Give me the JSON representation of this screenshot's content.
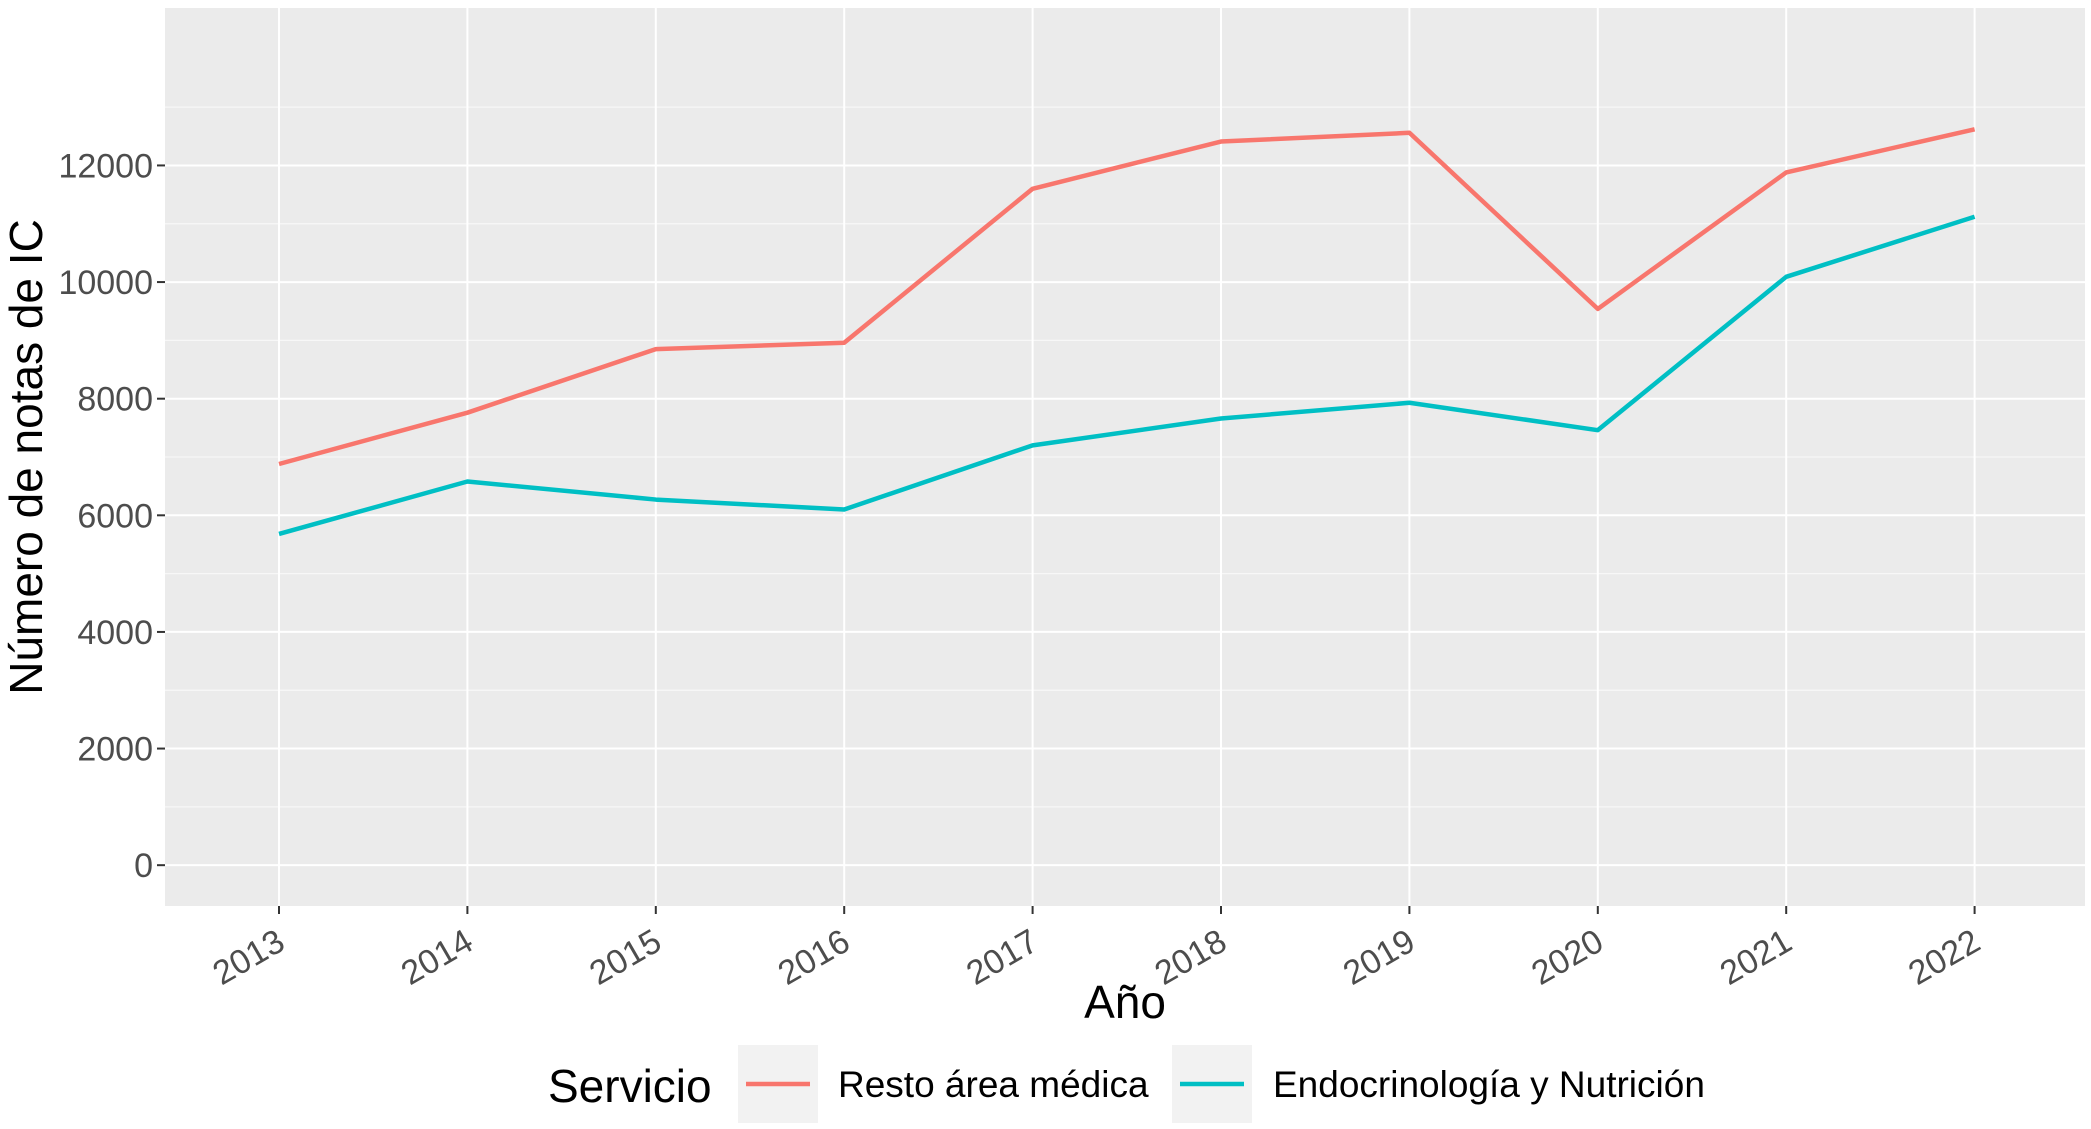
{
  "chart_data": {
    "type": "line",
    "title": "",
    "xlabel": "Año",
    "ylabel": "Número de notas de IC",
    "x": [
      "2013",
      "2014",
      "2015",
      "2016",
      "2017",
      "2018",
      "2019",
      "2020",
      "2021",
      "2022"
    ],
    "y_ticks": [
      "0",
      "2000",
      "4000",
      "6000",
      "8000",
      "10000",
      "12000"
    ],
    "ylim": [
      -700,
      14700
    ],
    "grid": true,
    "legend": {
      "title": "Servicio",
      "position": "bottom"
    },
    "series": [
      {
        "name": "Resto área médica",
        "color": "#F8766D",
        "values": [
          6880,
          7760,
          8850,
          8960,
          11600,
          12410,
          12560,
          9540,
          11880,
          12620
        ]
      },
      {
        "name": "Endocrinología y Nutrición",
        "color": "#00BFC4",
        "values": [
          5680,
          6580,
          6270,
          6100,
          7200,
          7660,
          7930,
          7460,
          10090,
          11120
        ]
      }
    ]
  }
}
